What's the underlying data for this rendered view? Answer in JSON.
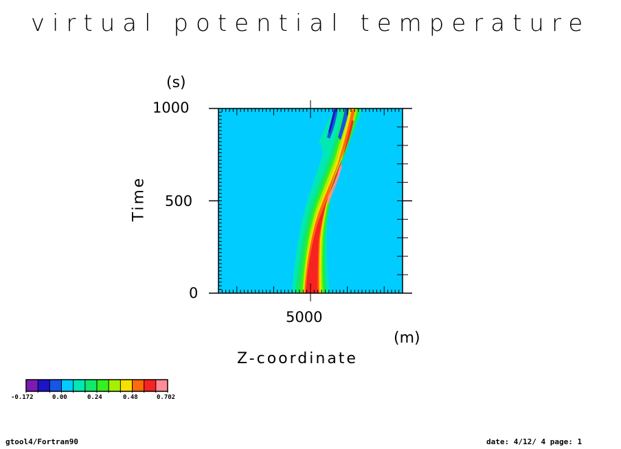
{
  "chart_data": {
    "type": "heatmap",
    "title": "virtual potential temperature",
    "xlabel": "Z-coordinate",
    "xunit": "(m)",
    "ylabel": "Time",
    "yunit": "(s)",
    "xlim": [
      2500,
      7500
    ],
    "ylim": [
      0,
      1000
    ],
    "xticks": [
      "5000"
    ],
    "yticks": [
      "0",
      "500",
      "1000"
    ],
    "background_value": 0.0,
    "colorbar": {
      "colors": [
        "#7d1ab3",
        "#1c14c7",
        "#1655e6",
        "#00ccff",
        "#00e8b4",
        "#12e86b",
        "#34f11d",
        "#a5f000",
        "#f7e000",
        "#ff6a0a",
        "#f72222",
        "#ff8c96"
      ],
      "tick_labels": [
        "-0.172",
        "0.00",
        "0.24",
        "0.48",
        "0.702"
      ]
    }
  },
  "footer": {
    "left": "gtool4/Fortran90",
    "right": "date: 4/12/ 4 page: 1"
  }
}
